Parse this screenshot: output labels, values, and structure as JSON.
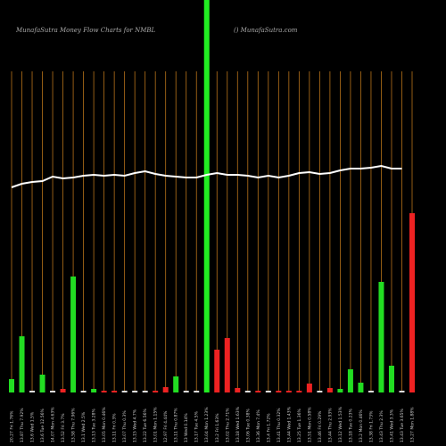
{
  "chart_data": {
    "type": "bar",
    "title": "MunafaSutra  Money Flow  Charts for NMBL",
    "subtitle": "() MunafaSutra.com",
    "categories": [
      "20.27 Fri 1.76%",
      "13.87 Thu 7.92%",
      "13.6 Wed 1.5%",
      "13.6 Tue 12.56%",
      "14.07 Mon 4.63%",
      "13.52 Fri 3.7%",
      "13.58 Thu 7.96%",
      "13.1 Wed 2.5%",
      "13.13 Tue 3.28%",
      "13.05 Mon 0.46%",
      "13.11 Fri 0.3%",
      "13.07 Thu 0.3%",
      "13.15 Wed 4.7%",
      "13.22 Tue 6.56%",
      "13.01 Mon 1.15%",
      "12.97 Fri 4.44%",
      "13.11 Thu 0.87%",
      "13 Wed 0.14%",
      "13.17 Tue 4.5%",
      "13.04 Mon 1.23%",
      "13.2 Fri 1.63%",
      "13.02 Thu 2.71%",
      "13.18 Wed 1.63%",
      "13.06 Tue 0.38%",
      "13.36 Mon 7.4%",
      "13.4 Fri 1.72%",
      "13.41 Thu 0.32%",
      "13.44 Wed 1.43%",
      "13.25 Tue 1.36%",
      "13.51 Mon 0.58%",
      "13.46 Fri 0.29%",
      "13.44 Thu 2.93%",
      "13.12 Wed 1.53%",
      "13.18 Tue 0.23%",
      "13.2 Mon 0.46%",
      "13.38 Fri 1.73%",
      "13.43 Thu 2.3%",
      "13.41 Wed 3.3%",
      "13.43 Tue 3.65%",
      "13.27 Mon 1.88%"
    ],
    "values": [
      15,
      63,
      2,
      20,
      2,
      4,
      130,
      2,
      4,
      2,
      2,
      2,
      2,
      2,
      2,
      6,
      18,
      2,
      2,
      440,
      48,
      61,
      5,
      2,
      2,
      2,
      2,
      2,
      2,
      10,
      2,
      5,
      4,
      26,
      11,
      2,
      124,
      30,
      2,
      201
    ],
    "colors": [
      "#22dd22",
      "#22dd22",
      "#dddddd",
      "#22dd22",
      "#dddddd",
      "#ee2222",
      "#22dd22",
      "#dddddd",
      "#22dd22",
      "#ee2222",
      "#ee2222",
      "#dddddd",
      "#dddddd",
      "#dddddd",
      "#ee2222",
      "#ee2222",
      "#22dd22",
      "#dddddd",
      "#dddddd",
      "#22ee22",
      "#ee2222",
      "#ee2222",
      "#ee2222",
      "#dddddd",
      "#ee2222",
      "#dddddd",
      "#ee2222",
      "#ee2222",
      "#ee2222",
      "#ee2222",
      "#dddddd",
      "#ee2222",
      "#22dd22",
      "#22dd22",
      "#22dd22",
      "#dddddd",
      "#22dd22",
      "#22dd22",
      "#dddddd",
      "#ee2222"
    ],
    "line": {
      "color": "#ffffff",
      "values": [
        230,
        234,
        236,
        237,
        242,
        240,
        241,
        243,
        244,
        243,
        244,
        243,
        246,
        248,
        245,
        243,
        242,
        241,
        241,
        244,
        246,
        244,
        244,
        243,
        241,
        243,
        241,
        243,
        246,
        247,
        245,
        246,
        249,
        251,
        251,
        252,
        254,
        251,
        251,
        null
      ]
    },
    "ylim": [
      0,
      440
    ],
    "grid_color": "#b8731a"
  }
}
